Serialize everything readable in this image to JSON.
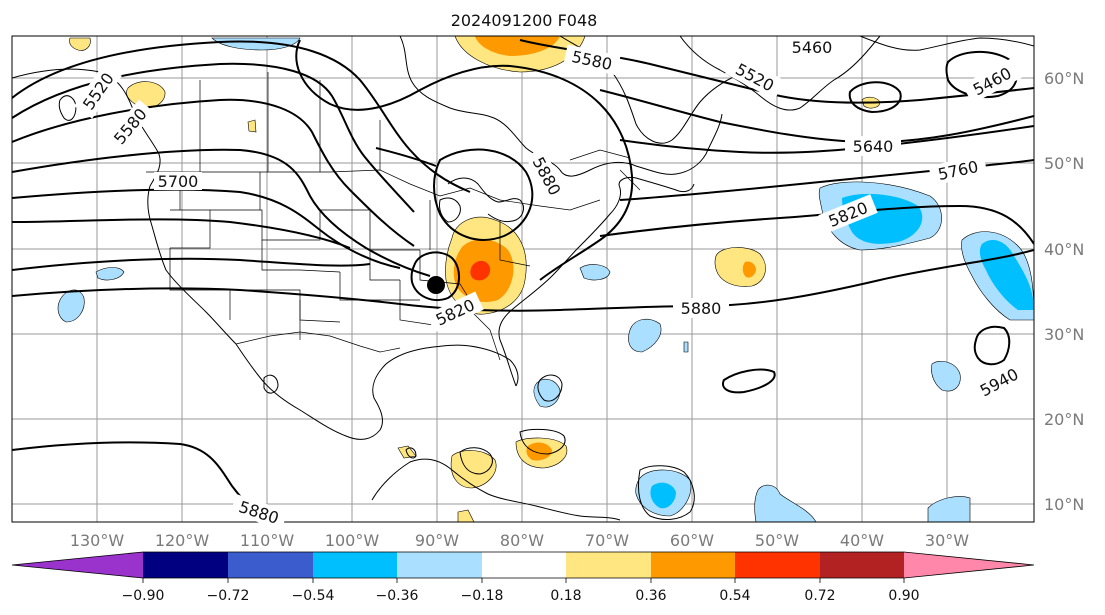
{
  "title": "2024091200 F048",
  "lon_labels": [
    "130°W",
    "120°W",
    "110°W",
    "100°W",
    "90°W",
    "80°W",
    "70°W",
    "60°W",
    "50°W",
    "40°W",
    "30°W"
  ],
  "lat_labels": [
    "60°N",
    "50°N",
    "40°N",
    "30°N",
    "20°N",
    "10°N"
  ],
  "colorbar": {
    "tick_labels": [
      "−0.90",
      "−0.72",
      "−0.54",
      "−0.36",
      "−0.18",
      "0.18",
      "0.36",
      "0.54",
      "0.72",
      "0.90"
    ],
    "colors": [
      "#9933cc",
      "#000080",
      "#3a5ccc",
      "#00bfff",
      "#aadfff",
      "#ffffff",
      "#ffe680",
      "#ff9900",
      "#ff3300",
      "#b22222",
      "#ff88aa"
    ]
  },
  "contour_labels": [
    "5460",
    "5460",
    "5520",
    "5520",
    "5580",
    "5580",
    "5640",
    "5700",
    "5760",
    "5820",
    "5820",
    "5880",
    "5880",
    "5880",
    "5940"
  ],
  "colors": {
    "gridline": "#9a9a9a",
    "axis_label": "#7a7a7a",
    "contour": "#000000"
  },
  "marker": "storm-center-dot"
}
